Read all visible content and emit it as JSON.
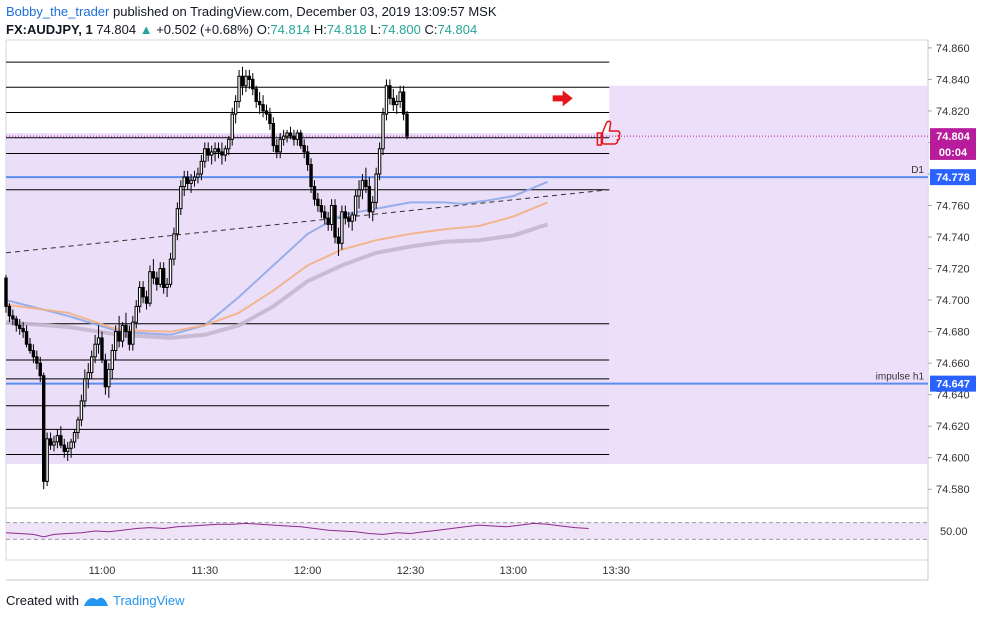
{
  "header": {
    "author": "Bobby_the_trader",
    "published_text": "published on TradingView.com, December 03, 2019 13:09:57 MSK",
    "symbol": "FX:AUDJPY, 1",
    "last": "74.804",
    "change": "+0.502 (+0.68%)",
    "o_label": "O:",
    "o_value": "74.814",
    "h_label": "H:",
    "h_value": "74.818",
    "l_label": "L:",
    "l_value": "74.800",
    "c_label": "C:",
    "c_value": "74.804"
  },
  "footer": {
    "created_with": "Created with",
    "brand": "TradingView"
  },
  "chart_data": {
    "type": "candlestick",
    "symbol": "FX:AUDJPY",
    "timeframe": "1 minute",
    "y_ticks": [
      "74.860",
      "74.840",
      "74.820",
      "74.800",
      "74.780",
      "74.760",
      "74.740",
      "74.720",
      "74.700",
      "74.680",
      "74.660",
      "74.640",
      "74.620",
      "74.600",
      "74.580"
    ],
    "ylim": [
      74.57,
      74.865
    ],
    "x_ticks": [
      "11:00",
      "11:30",
      "12:00",
      "12:30",
      "13:00",
      "13:30"
    ],
    "x_tick_minutes": [
      660,
      690,
      720,
      750,
      780,
      810
    ],
    "xlim_minutes": [
      632,
      901
    ],
    "price_labels": [
      {
        "text": "74.804",
        "value": 74.804,
        "color": "#b71c9c",
        "text_color": "#ffffff"
      },
      {
        "text": "00:04",
        "value": 74.794,
        "color": "#b71c9c",
        "text_color": "#ffffff"
      },
      {
        "text": "74.778",
        "value": 74.778,
        "color": "#2962ff",
        "text_color": "#ffffff"
      },
      {
        "text": "74.647",
        "value": 74.647,
        "color": "#2962ff",
        "text_color": "#ffffff"
      }
    ],
    "horizontal_lines": [
      {
        "label": "D1",
        "value": 74.778,
        "color": "#5b8def"
      },
      {
        "label": "impulse h1",
        "value": 74.647,
        "color": "#5b8def"
      }
    ],
    "level_lines": [
      74.851,
      74.835,
      74.819,
      74.803,
      74.793,
      74.77,
      74.685,
      74.662,
      74.65,
      74.633,
      74.618,
      74.602
    ],
    "zones": [
      {
        "from": 74.596,
        "to": 74.806,
        "color": "#e7d8f8"
      },
      {
        "from": 74.596,
        "to": 74.836,
        "color": "#ead9f9"
      }
    ],
    "trendline": {
      "x_minutes": [
        632,
        808
      ],
      "y": [
        74.73,
        74.77
      ],
      "style": "dashed"
    },
    "moving_averages": [
      {
        "color": "#8fa8e8",
        "points": [
          [
            632,
            74.7
          ],
          [
            650,
            74.69
          ],
          [
            665,
            74.68
          ],
          [
            680,
            74.678
          ],
          [
            690,
            74.684
          ],
          [
            700,
            74.702
          ],
          [
            710,
            74.722
          ],
          [
            720,
            74.742
          ],
          [
            730,
            74.754
          ],
          [
            740,
            74.758
          ],
          [
            750,
            74.762
          ],
          [
            760,
            74.762
          ],
          [
            765,
            74.761
          ],
          [
            772,
            74.763
          ],
          [
            780,
            74.766
          ],
          [
            790,
            74.775
          ]
        ]
      },
      {
        "color": "#f2b184",
        "points": [
          [
            632,
            74.697
          ],
          [
            650,
            74.692
          ],
          [
            665,
            74.681
          ],
          [
            680,
            74.68
          ],
          [
            690,
            74.684
          ],
          [
            700,
            74.692
          ],
          [
            710,
            74.706
          ],
          [
            720,
            74.722
          ],
          [
            730,
            74.732
          ],
          [
            740,
            74.738
          ],
          [
            750,
            74.742
          ],
          [
            760,
            74.745
          ],
          [
            770,
            74.747
          ],
          [
            780,
            74.753
          ],
          [
            790,
            74.762
          ]
        ]
      },
      {
        "color": "#c5b7cf",
        "points": [
          [
            632,
            74.686
          ],
          [
            650,
            74.683
          ],
          [
            665,
            74.678
          ],
          [
            680,
            74.676
          ],
          [
            690,
            74.678
          ],
          [
            700,
            74.684
          ],
          [
            710,
            74.696
          ],
          [
            720,
            74.712
          ],
          [
            730,
            74.722
          ],
          [
            740,
            74.73
          ],
          [
            750,
            74.734
          ],
          [
            760,
            74.737
          ],
          [
            770,
            74.738
          ],
          [
            780,
            74.741
          ],
          [
            790,
            74.748
          ]
        ]
      }
    ],
    "candles": [
      [
        632,
        74.714,
        74.716,
        74.692,
        74.696
      ],
      [
        633,
        74.696,
        74.698,
        74.686,
        74.69
      ],
      [
        634,
        74.69,
        74.694,
        74.684,
        74.688
      ],
      [
        635,
        74.688,
        74.69,
        74.68,
        74.684
      ],
      [
        636,
        74.684,
        74.688,
        74.678,
        74.682
      ],
      [
        637,
        74.682,
        74.686,
        74.676,
        74.68
      ],
      [
        638,
        74.68,
        74.684,
        74.67,
        74.672
      ],
      [
        639,
        74.672,
        74.676,
        74.666,
        74.668
      ],
      [
        640,
        74.668,
        74.672,
        74.66,
        74.664
      ],
      [
        641,
        74.664,
        74.668,
        74.656,
        74.66
      ],
      [
        642,
        74.66,
        74.664,
        74.648,
        74.652
      ],
      [
        643,
        74.652,
        74.654,
        74.58,
        74.585
      ],
      [
        644,
        74.585,
        74.616,
        74.582,
        74.612
      ],
      [
        645,
        74.612,
        74.616,
        74.605,
        74.608
      ],
      [
        646,
        74.608,
        74.614,
        74.604,
        74.61
      ],
      [
        647,
        74.61,
        74.618,
        74.606,
        74.614
      ],
      [
        648,
        74.614,
        74.62,
        74.606,
        74.608
      ],
      [
        649,
        74.608,
        74.612,
        74.6,
        74.604
      ],
      [
        650,
        74.604,
        74.61,
        74.598,
        74.606
      ],
      [
        651,
        74.606,
        74.612,
        74.6,
        74.61
      ],
      [
        652,
        74.61,
        74.618,
        74.606,
        74.616
      ],
      [
        653,
        74.616,
        74.626,
        74.612,
        74.624
      ],
      [
        654,
        74.624,
        74.64,
        74.62,
        74.636
      ],
      [
        655,
        74.636,
        74.656,
        74.632,
        74.65
      ],
      [
        656,
        74.65,
        74.66,
        74.644,
        74.654
      ],
      [
        657,
        74.654,
        74.668,
        74.65,
        74.664
      ],
      [
        658,
        74.664,
        74.678,
        74.66,
        74.672
      ],
      [
        659,
        74.672,
        74.684,
        74.666,
        74.676
      ],
      [
        660,
        74.676,
        74.68,
        74.66,
        74.662
      ],
      [
        661,
        74.662,
        74.666,
        74.64,
        74.645
      ],
      [
        662,
        74.645,
        74.66,
        74.638,
        74.656
      ],
      [
        663,
        74.656,
        74.672,
        74.65,
        74.668
      ],
      [
        664,
        74.668,
        74.684,
        74.662,
        74.68
      ],
      [
        665,
        74.68,
        74.69,
        74.67,
        74.674
      ],
      [
        666,
        74.674,
        74.686,
        74.67,
        74.684
      ],
      [
        667,
        74.684,
        74.692,
        74.676,
        74.68
      ],
      [
        668,
        74.68,
        74.684,
        74.668,
        74.672
      ],
      [
        669,
        74.672,
        74.69,
        74.668,
        74.686
      ],
      [
        670,
        74.686,
        74.7,
        74.682,
        74.696
      ],
      [
        671,
        74.696,
        74.712,
        74.692,
        74.708
      ],
      [
        672,
        74.708,
        74.712,
        74.698,
        74.702
      ],
      [
        673,
        74.702,
        74.706,
        74.694,
        74.698
      ],
      [
        674,
        74.698,
        74.722,
        74.696,
        74.718
      ],
      [
        675,
        74.718,
        74.726,
        74.71,
        74.714
      ],
      [
        676,
        74.714,
        74.718,
        74.706,
        74.71
      ],
      [
        677,
        74.71,
        74.724,
        74.708,
        74.72
      ],
      [
        678,
        74.72,
        74.724,
        74.704,
        74.708
      ],
      [
        679,
        74.708,
        74.714,
        74.702,
        74.71
      ],
      [
        680,
        74.71,
        74.73,
        74.708,
        74.726
      ],
      [
        681,
        74.726,
        74.746,
        74.722,
        74.742
      ],
      [
        682,
        74.742,
        74.762,
        74.738,
        74.758
      ],
      [
        683,
        74.758,
        74.776,
        74.754,
        74.772
      ],
      [
        684,
        74.772,
        74.782,
        74.766,
        74.778
      ],
      [
        685,
        74.778,
        74.782,
        74.77,
        74.774
      ],
      [
        686,
        74.774,
        74.78,
        74.768,
        74.776
      ],
      [
        687,
        74.776,
        74.782,
        74.772,
        74.778
      ],
      [
        688,
        74.778,
        74.784,
        74.774,
        74.78
      ],
      [
        689,
        74.78,
        74.792,
        74.776,
        74.788
      ],
      [
        690,
        74.788,
        74.8,
        74.784,
        74.796
      ],
      [
        691,
        74.796,
        74.8,
        74.788,
        74.792
      ],
      [
        692,
        74.792,
        74.798,
        74.786,
        74.794
      ],
      [
        693,
        74.794,
        74.8,
        74.788,
        74.796
      ],
      [
        694,
        74.796,
        74.8,
        74.79,
        74.794
      ],
      [
        695,
        74.794,
        74.8,
        74.786,
        74.792
      ],
      [
        696,
        74.792,
        74.798,
        74.788,
        74.796
      ],
      [
        697,
        74.796,
        74.804,
        74.792,
        74.802
      ],
      [
        698,
        74.802,
        74.822,
        74.798,
        74.818
      ],
      [
        699,
        74.818,
        74.83,
        74.812,
        74.826
      ],
      [
        700,
        74.826,
        74.846,
        74.822,
        74.842
      ],
      [
        701,
        74.842,
        74.848,
        74.83,
        74.836
      ],
      [
        702,
        74.836,
        74.846,
        74.832,
        74.842
      ],
      [
        703,
        74.842,
        74.846,
        74.834,
        74.84
      ],
      [
        704,
        74.84,
        74.844,
        74.83,
        74.834
      ],
      [
        705,
        74.834,
        74.836,
        74.822,
        74.826
      ],
      [
        706,
        74.826,
        74.832,
        74.818,
        74.824
      ],
      [
        707,
        74.824,
        74.83,
        74.816,
        74.82
      ],
      [
        708,
        74.82,
        74.824,
        74.814,
        74.818
      ],
      [
        709,
        74.818,
        74.822,
        74.808,
        74.812
      ],
      [
        710,
        74.812,
        74.816,
        74.794,
        74.798
      ],
      [
        711,
        74.798,
        74.802,
        74.79,
        74.794
      ],
      [
        712,
        74.794,
        74.806,
        74.79,
        74.802
      ],
      [
        713,
        74.802,
        74.808,
        74.798,
        74.804
      ],
      [
        714,
        74.804,
        74.808,
        74.8,
        74.806
      ],
      [
        715,
        74.806,
        74.81,
        74.802,
        74.804
      ],
      [
        716,
        74.804,
        74.808,
        74.798,
        74.802
      ],
      [
        717,
        74.802,
        74.808,
        74.798,
        74.806
      ],
      [
        718,
        74.806,
        74.808,
        74.796,
        74.798
      ],
      [
        719,
        74.798,
        74.802,
        74.79,
        74.794
      ],
      [
        720,
        74.794,
        74.798,
        74.782,
        74.786
      ],
      [
        721,
        74.786,
        74.79,
        74.768,
        74.772
      ],
      [
        722,
        74.772,
        74.776,
        74.76,
        74.764
      ],
      [
        723,
        74.764,
        74.768,
        74.756,
        74.76
      ],
      [
        724,
        74.76,
        74.764,
        74.752,
        74.756
      ],
      [
        725,
        74.756,
        74.76,
        74.748,
        74.752
      ],
      [
        726,
        74.752,
        74.756,
        74.744,
        74.748
      ],
      [
        727,
        74.748,
        74.764,
        74.744,
        74.76
      ],
      [
        728,
        74.76,
        74.764,
        74.736,
        74.74
      ],
      [
        729,
        74.74,
        74.746,
        74.728,
        74.736
      ],
      [
        730,
        74.736,
        74.76,
        74.732,
        74.756
      ],
      [
        731,
        74.756,
        74.76,
        74.748,
        74.752
      ],
      [
        732,
        74.752,
        74.756,
        74.746,
        74.75
      ],
      [
        733,
        74.75,
        74.756,
        74.744,
        74.754
      ],
      [
        734,
        74.754,
        74.77,
        74.75,
        74.766
      ],
      [
        735,
        74.766,
        74.776,
        74.758,
        74.77
      ],
      [
        736,
        74.77,
        74.78,
        74.764,
        74.776
      ],
      [
        737,
        74.776,
        74.784,
        74.768,
        74.772
      ],
      [
        738,
        74.772,
        74.778,
        74.752,
        74.756
      ],
      [
        739,
        74.756,
        74.766,
        74.75,
        74.762
      ],
      [
        740,
        74.762,
        74.784,
        74.758,
        74.78
      ],
      [
        741,
        74.78,
        74.8,
        74.776,
        74.796
      ],
      [
        742,
        74.796,
        74.822,
        74.792,
        74.818
      ],
      [
        743,
        74.818,
        74.84,
        74.814,
        74.836
      ],
      [
        744,
        74.836,
        74.84,
        74.824,
        74.828
      ],
      [
        745,
        74.828,
        74.834,
        74.82,
        74.824
      ],
      [
        746,
        74.824,
        74.83,
        74.818,
        74.826
      ],
      [
        747,
        74.826,
        74.836,
        74.822,
        74.832
      ],
      [
        748,
        74.832,
        74.836,
        74.814,
        74.818
      ],
      [
        749,
        74.818,
        74.82,
        74.802,
        74.804
      ]
    ],
    "candle_minutes_note": "",
    "rsi": {
      "tick": "50.00",
      "upper": 70,
      "lower": 30,
      "points": [
        [
          632,
          46
        ],
        [
          636,
          44
        ],
        [
          640,
          42
        ],
        [
          643,
          36
        ],
        [
          646,
          42
        ],
        [
          650,
          44
        ],
        [
          654,
          46
        ],
        [
          658,
          50
        ],
        [
          662,
          48
        ],
        [
          666,
          52
        ],
        [
          670,
          56
        ],
        [
          674,
          58
        ],
        [
          678,
          56
        ],
        [
          682,
          60
        ],
        [
          686,
          62
        ],
        [
          690,
          64
        ],
        [
          694,
          66
        ],
        [
          698,
          66
        ],
        [
          702,
          68
        ],
        [
          706,
          66
        ],
        [
          710,
          64
        ],
        [
          714,
          62
        ],
        [
          718,
          60
        ],
        [
          722,
          56
        ],
        [
          726,
          52
        ],
        [
          730,
          50
        ],
        [
          734,
          48
        ],
        [
          738,
          44
        ],
        [
          742,
          42
        ],
        [
          746,
          46
        ],
        [
          750,
          44
        ],
        [
          754,
          48
        ],
        [
          758,
          52
        ],
        [
          762,
          56
        ],
        [
          766,
          60
        ],
        [
          770,
          64
        ],
        [
          774,
          62
        ],
        [
          778,
          60
        ],
        [
          782,
          64
        ],
        [
          786,
          68
        ],
        [
          790,
          66
        ],
        [
          794,
          62
        ],
        [
          798,
          58
        ],
        [
          802,
          56
        ]
      ]
    },
    "annotations": [
      {
        "kind": "red-arrow",
        "minute": 795,
        "value": 74.828
      },
      {
        "kind": "thumbs-up",
        "minute": 806,
        "value": 74.806
      }
    ]
  }
}
